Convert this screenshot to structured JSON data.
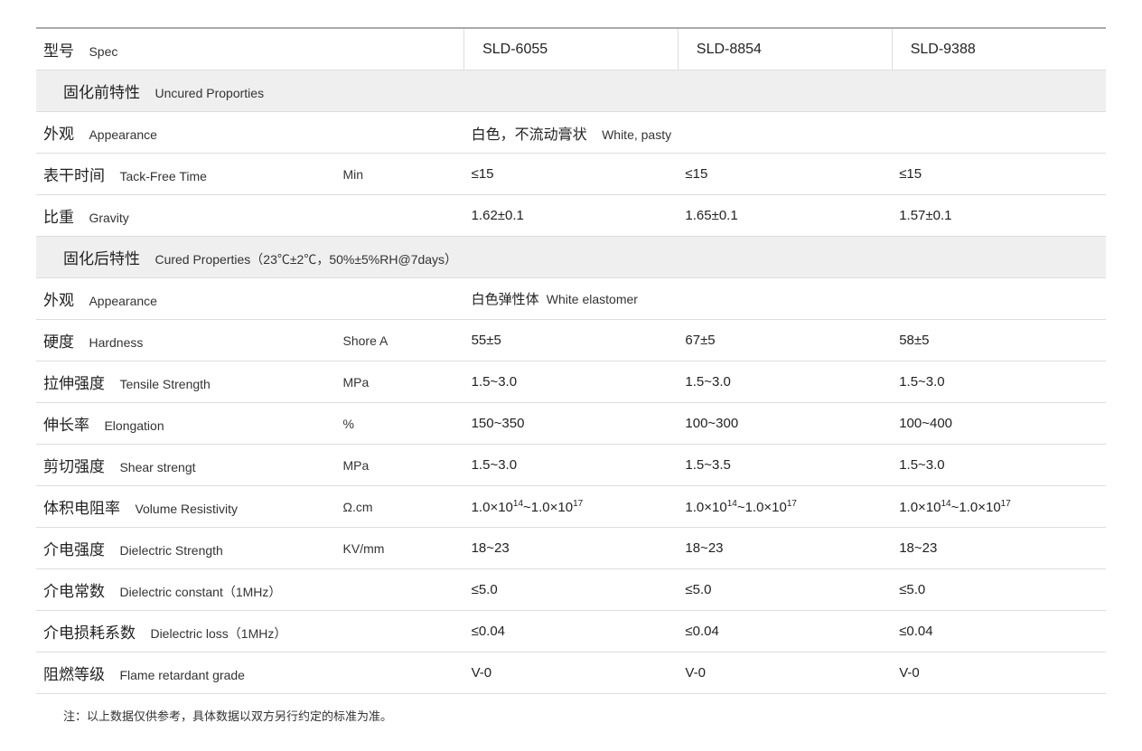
{
  "header": {
    "label_cn": "型号",
    "label_en": "Spec",
    "models": [
      "SLD-6055",
      "SLD-8854",
      "SLD-9388"
    ]
  },
  "sections": [
    {
      "title_cn": "固化前特性",
      "title_en": "Uncured Proporties"
    },
    {
      "title_cn": "固化后特性",
      "title_en": "Cured Properties（23℃±2℃，50%±5%RH@7days）"
    }
  ],
  "rows_uncured": {
    "appearance": {
      "label_cn": "外观",
      "label_en": "Appearance",
      "unit": "",
      "merged_cn": "白色，不流动膏状",
      "merged_en": "White, pasty"
    },
    "tackfree": {
      "label_cn": "表干时间",
      "label_en": "Tack-Free Time",
      "unit": "Min",
      "vals": [
        "≤15",
        "≤15",
        "≤15"
      ]
    },
    "gravity": {
      "label_cn": "比重",
      "label_en": "Gravity",
      "unit": "",
      "vals": [
        "1.62±0.1",
        "1.65±0.1",
        "1.57±0.1"
      ]
    }
  },
  "rows_cured": {
    "appearance2": {
      "label_cn": "外观",
      "label_en": "Appearance",
      "unit": "",
      "merged_cn": "白色弹性体",
      "merged_en": "White elastomer"
    },
    "hardness": {
      "label_cn": "硬度",
      "label_en": "Hardness",
      "unit": "Shore A",
      "vals": [
        "55±5",
        "67±5",
        "58±5"
      ]
    },
    "tensile": {
      "label_cn": "拉伸强度",
      "label_en": "Tensile Strength",
      "unit": "MPa",
      "vals": [
        "1.5~3.0",
        "1.5~3.0",
        "1.5~3.0"
      ]
    },
    "elongation": {
      "label_cn": "伸长率",
      "label_en": "Elongation",
      "unit": "%",
      "vals": [
        "150~350",
        "100~300",
        "100~400"
      ]
    },
    "shear": {
      "label_cn": "剪切强度",
      "label_en": "Shear strengt",
      "unit": "MPa",
      "vals": [
        "1.5~3.0",
        "1.5~3.5",
        "1.5~3.0"
      ]
    },
    "resistivity": {
      "label_cn": "体积电阻率",
      "label_en": "Volume Resistivity",
      "unit": "Ω.cm",
      "vals_html": [
        "1.0×10<sup>14</sup>~1.0×10<sup>17</sup>",
        "1.0×10<sup>14</sup>~1.0×10<sup>17</sup>",
        "1.0×10<sup>14</sup>~1.0×10<sup>17</sup>"
      ]
    },
    "dielectric_strength": {
      "label_cn": "介电强度",
      "label_en": "Dielectric Strength",
      "unit": "KV/mm",
      "vals": [
        "18~23",
        "18~23",
        "18~23"
      ]
    },
    "dielectric_constant": {
      "label_cn": "介电常数",
      "label_en": "Dielectric constant（1MHz）",
      "unit": "",
      "vals": [
        "≤5.0",
        "≤5.0",
        "≤5.0"
      ]
    },
    "dielectric_loss": {
      "label_cn": "介电损耗系数",
      "label_en": "Dielectric loss（1MHz）",
      "unit": "",
      "vals": [
        "≤0.04",
        "≤0.04",
        "≤0.04"
      ]
    },
    "flame": {
      "label_cn": "阻燃等级",
      "label_en": "Flame retardant grade",
      "unit": "",
      "vals": [
        "V-0",
        "V-0",
        "V-0"
      ]
    }
  },
  "footnote": "注：以上数据仅供参考，具体数据以双方另行约定的标准为准。",
  "colors": {
    "text": "#222222",
    "border": "#dddddd",
    "section_bg": "#efefef",
    "top_border": "#aaaaaa"
  }
}
